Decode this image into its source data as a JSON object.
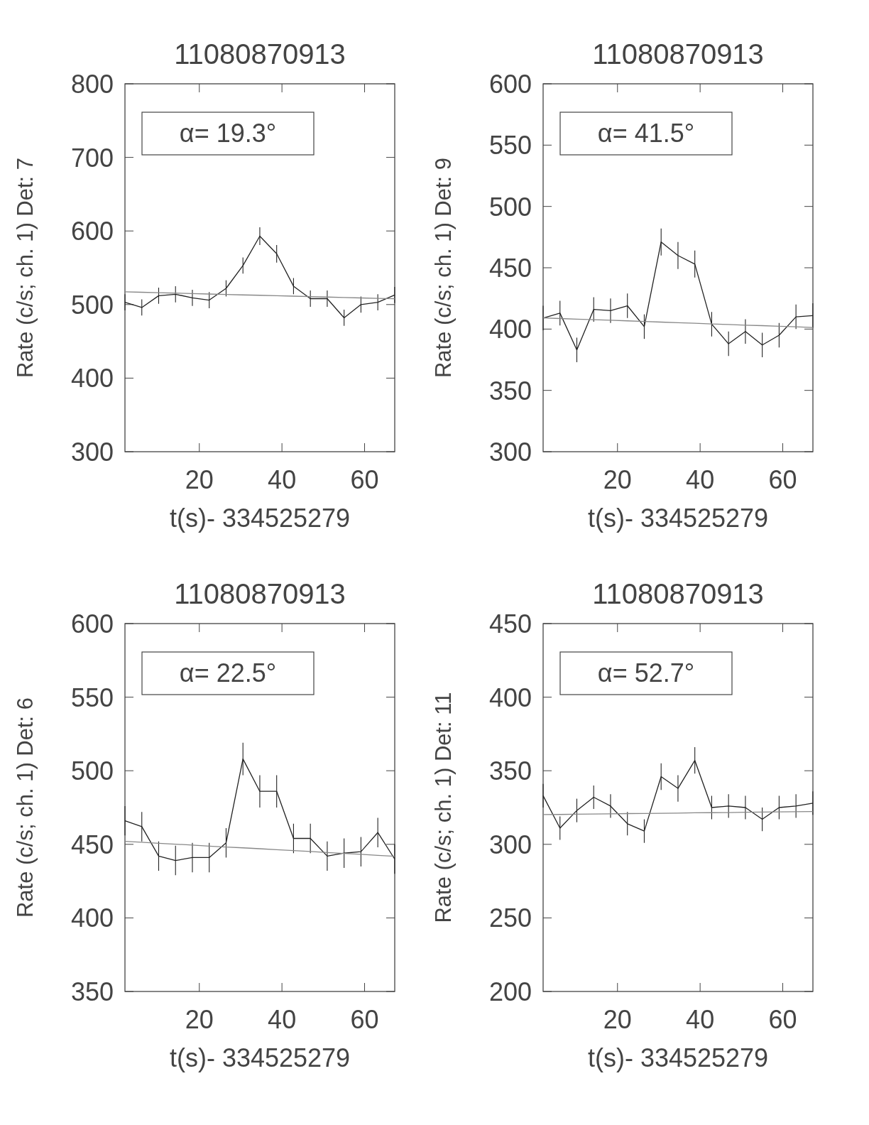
{
  "chart_data": [
    {
      "type": "line",
      "title": "11080870913",
      "xlabel": "t(s)- 334525279",
      "ylabel": "Rate (c/s; ch. 1) Det: 7",
      "annotations": [
        "α= 19.3°"
      ],
      "x": [
        2,
        6.08,
        10.16,
        14.24,
        18.32,
        22.4,
        26.48,
        30.56,
        34.64,
        38.72,
        42.8,
        46.88,
        50.96,
        55.04,
        59.12,
        63.2,
        67.28
      ],
      "xlim": [
        2,
        67.3
      ],
      "xticks": [
        20,
        40,
        60
      ],
      "ylim": [
        300,
        800
      ],
      "yticks": [
        300,
        400,
        500,
        600,
        700,
        800
      ],
      "series": [
        {
          "color": "#222222",
          "values": [
            503,
            496,
            512,
            514,
            509,
            506,
            522,
            553,
            593,
            569,
            525,
            508,
            508,
            482,
            500,
            503,
            513
          ],
          "errors": [
            11,
            11,
            11,
            11,
            11,
            11,
            11,
            11,
            12,
            12,
            11,
            11,
            11,
            11,
            11,
            11,
            11
          ]
        },
        {
          "type": "line",
          "color": "#888888",
          "values": [
            517.3,
            516.7,
            516.1,
            515.5,
            514.9,
            514.3,
            513.7,
            513.1,
            512.6,
            512.0,
            511.4,
            510.8,
            510.2,
            509.6,
            509.0,
            508.4,
            507.8
          ]
        }
      ]
    },
    {
      "type": "line",
      "title": "11080870913",
      "xlabel": "t(s)- 334525279",
      "ylabel": "Rate (c/s; ch. 1) Det: 9",
      "annotations": [
        "α= 41.5°"
      ],
      "x": [
        2,
        6.08,
        10.16,
        14.24,
        18.32,
        22.4,
        26.48,
        30.56,
        34.64,
        38.72,
        42.8,
        46.88,
        50.96,
        55.04,
        59.12,
        63.2,
        67.28
      ],
      "xlim": [
        2,
        67.3
      ],
      "xticks": [
        20,
        40,
        60
      ],
      "ylim": [
        300,
        600
      ],
      "yticks": [
        300,
        350,
        400,
        450,
        500,
        550,
        600
      ],
      "series": [
        {
          "color": "#222222",
          "values": [
            409,
            413,
            383,
            416,
            415,
            419,
            402,
            471,
            460,
            453,
            404,
            388,
            398,
            387,
            395,
            410,
            411
          ],
          "errors": [
            10,
            10,
            10,
            10,
            10,
            10,
            10,
            11,
            11,
            11,
            10,
            10,
            10,
            10,
            10,
            10,
            10
          ]
        },
        {
          "type": "line",
          "color": "#888888",
          "values": [
            409.1,
            408.6,
            408.1,
            407.6,
            407.2,
            406.7,
            406.2,
            405.7,
            405.2,
            404.7,
            404.2,
            403.7,
            403.2,
            402.8,
            402.3,
            401.8,
            401.3
          ]
        }
      ]
    },
    {
      "type": "line",
      "title": "11080870913",
      "xlabel": "t(s)- 334525279",
      "ylabel": "Rate (c/s; ch. 1) Det: 6",
      "annotations": [
        "α= 22.5°"
      ],
      "x": [
        2,
        6.08,
        10.16,
        14.24,
        18.32,
        22.4,
        26.48,
        30.56,
        34.64,
        38.72,
        42.8,
        46.88,
        50.96,
        55.04,
        59.12,
        63.2,
        67.28
      ],
      "xlim": [
        2,
        67.3
      ],
      "xticks": [
        20,
        40,
        60
      ],
      "ylim": [
        350,
        600
      ],
      "yticks": [
        350,
        400,
        450,
        500,
        550,
        600
      ],
      "series": [
        {
          "color": "#222222",
          "values": [
            466,
            462,
            442,
            439,
            441,
            441,
            451,
            508,
            486,
            486,
            454,
            454,
            442,
            444,
            445,
            458,
            440
          ],
          "errors": [
            10,
            10,
            10,
            10,
            10,
            10,
            10,
            11,
            11,
            11,
            10,
            10,
            10,
            10,
            10,
            10,
            10
          ]
        },
        {
          "type": "line",
          "color": "#888888",
          "values": [
            452.0,
            451.4,
            450.7,
            450.1,
            449.5,
            448.8,
            448.2,
            447.6,
            447.0,
            446.3,
            445.7,
            445.1,
            444.4,
            443.8,
            443.2,
            442.5,
            441.9
          ]
        }
      ]
    },
    {
      "type": "line",
      "title": "11080870913",
      "xlabel": "t(s)- 334525279",
      "ylabel": "Rate (c/s; ch. 1) Det: 11",
      "annotations": [
        "α= 52.7°"
      ],
      "x": [
        2,
        6.08,
        10.16,
        14.24,
        18.32,
        22.4,
        26.48,
        30.56,
        34.64,
        38.72,
        42.8,
        46.88,
        50.96,
        55.04,
        59.12,
        63.2,
        67.28
      ],
      "xlim": [
        2,
        67.3
      ],
      "xticks": [
        20,
        40,
        60
      ],
      "ylim": [
        200,
        450
      ],
      "yticks": [
        200,
        250,
        300,
        350,
        400,
        450
      ],
      "series": [
        {
          "color": "#222222",
          "values": [
            333,
            311,
            323,
            332,
            326,
            314,
            309,
            346,
            338,
            357,
            325,
            326,
            325,
            317,
            325,
            326,
            328
          ],
          "errors": [
            8,
            8,
            8,
            8,
            8,
            8,
            8,
            9,
            9,
            9,
            8,
            8,
            8,
            8,
            8,
            8,
            8
          ]
        },
        {
          "type": "line",
          "color": "#888888",
          "values": [
            320.2,
            320.3,
            320.5,
            320.6,
            320.7,
            320.9,
            321.0,
            321.1,
            321.2,
            321.4,
            321.5,
            321.6,
            321.8,
            321.9,
            322.0,
            322.2,
            322.3
          ]
        }
      ]
    }
  ]
}
